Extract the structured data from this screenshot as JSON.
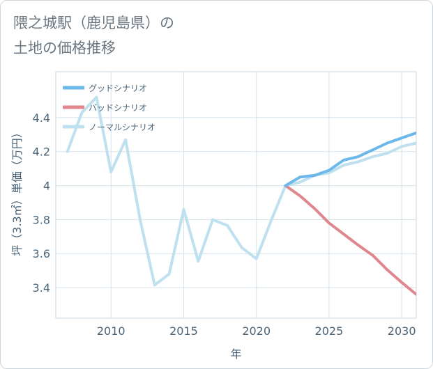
{
  "title_lines": [
    "隈之城駅（鹿児島県）の",
    "土地の価格推移"
  ],
  "chart_data": {
    "type": "line",
    "title": "隈之城駅（鹿児島県）の土地の価格推移",
    "xlabel": "年",
    "ylabel": "坪（3.3㎡）単価（万円）",
    "xlim": [
      2006.2,
      2031
    ],
    "ylim": [
      3.22,
      4.67
    ],
    "xticks": [
      2010,
      2015,
      2020,
      2025,
      2030
    ],
    "xtick_labels": [
      "2010",
      "2015",
      "2020",
      "2025",
      "2030"
    ],
    "yticks": [
      3.4,
      3.6,
      3.8,
      4.0,
      4.2,
      4.4
    ],
    "ytick_labels": [
      "3.4",
      "3.6",
      "3.8",
      "4",
      "4.2",
      "4.4"
    ],
    "legend_position": "top-left",
    "series": [
      {
        "name": "グッドシナリオ",
        "color": "#6cb8ea",
        "x": [
          2022,
          2023,
          2024,
          2025,
          2026,
          2027,
          2028,
          2029,
          2030,
          2031
        ],
        "values": [
          4.0,
          4.05,
          4.06,
          4.09,
          4.15,
          4.17,
          4.21,
          4.25,
          4.28,
          4.31
        ]
      },
      {
        "name": "バッドシナリオ",
        "color": "#e0868e",
        "x": [
          2022,
          2023,
          2024,
          2025,
          2026,
          2027,
          2028,
          2029,
          2030,
          2031
        ],
        "values": [
          4.0,
          3.94,
          3.865,
          3.78,
          3.715,
          3.65,
          3.59,
          3.505,
          3.43,
          3.36
        ]
      },
      {
        "name": "ノーマルシナリオ",
        "color": "#bfe0ef",
        "x": [
          2007,
          2008,
          2009,
          2010,
          2011,
          2012,
          2013,
          2014,
          2015,
          2016,
          2017,
          2018,
          2019,
          2020,
          2021,
          2022,
          2023,
          2024,
          2025,
          2026,
          2027,
          2028,
          2029,
          2030,
          2031
        ],
        "values": [
          4.2,
          4.43,
          4.52,
          4.08,
          4.27,
          3.8,
          3.415,
          3.48,
          3.86,
          3.555,
          3.8,
          3.765,
          3.635,
          3.57,
          3.79,
          4.0,
          4.02,
          4.06,
          4.075,
          4.12,
          4.14,
          4.17,
          4.19,
          4.23,
          4.25
        ]
      }
    ]
  }
}
